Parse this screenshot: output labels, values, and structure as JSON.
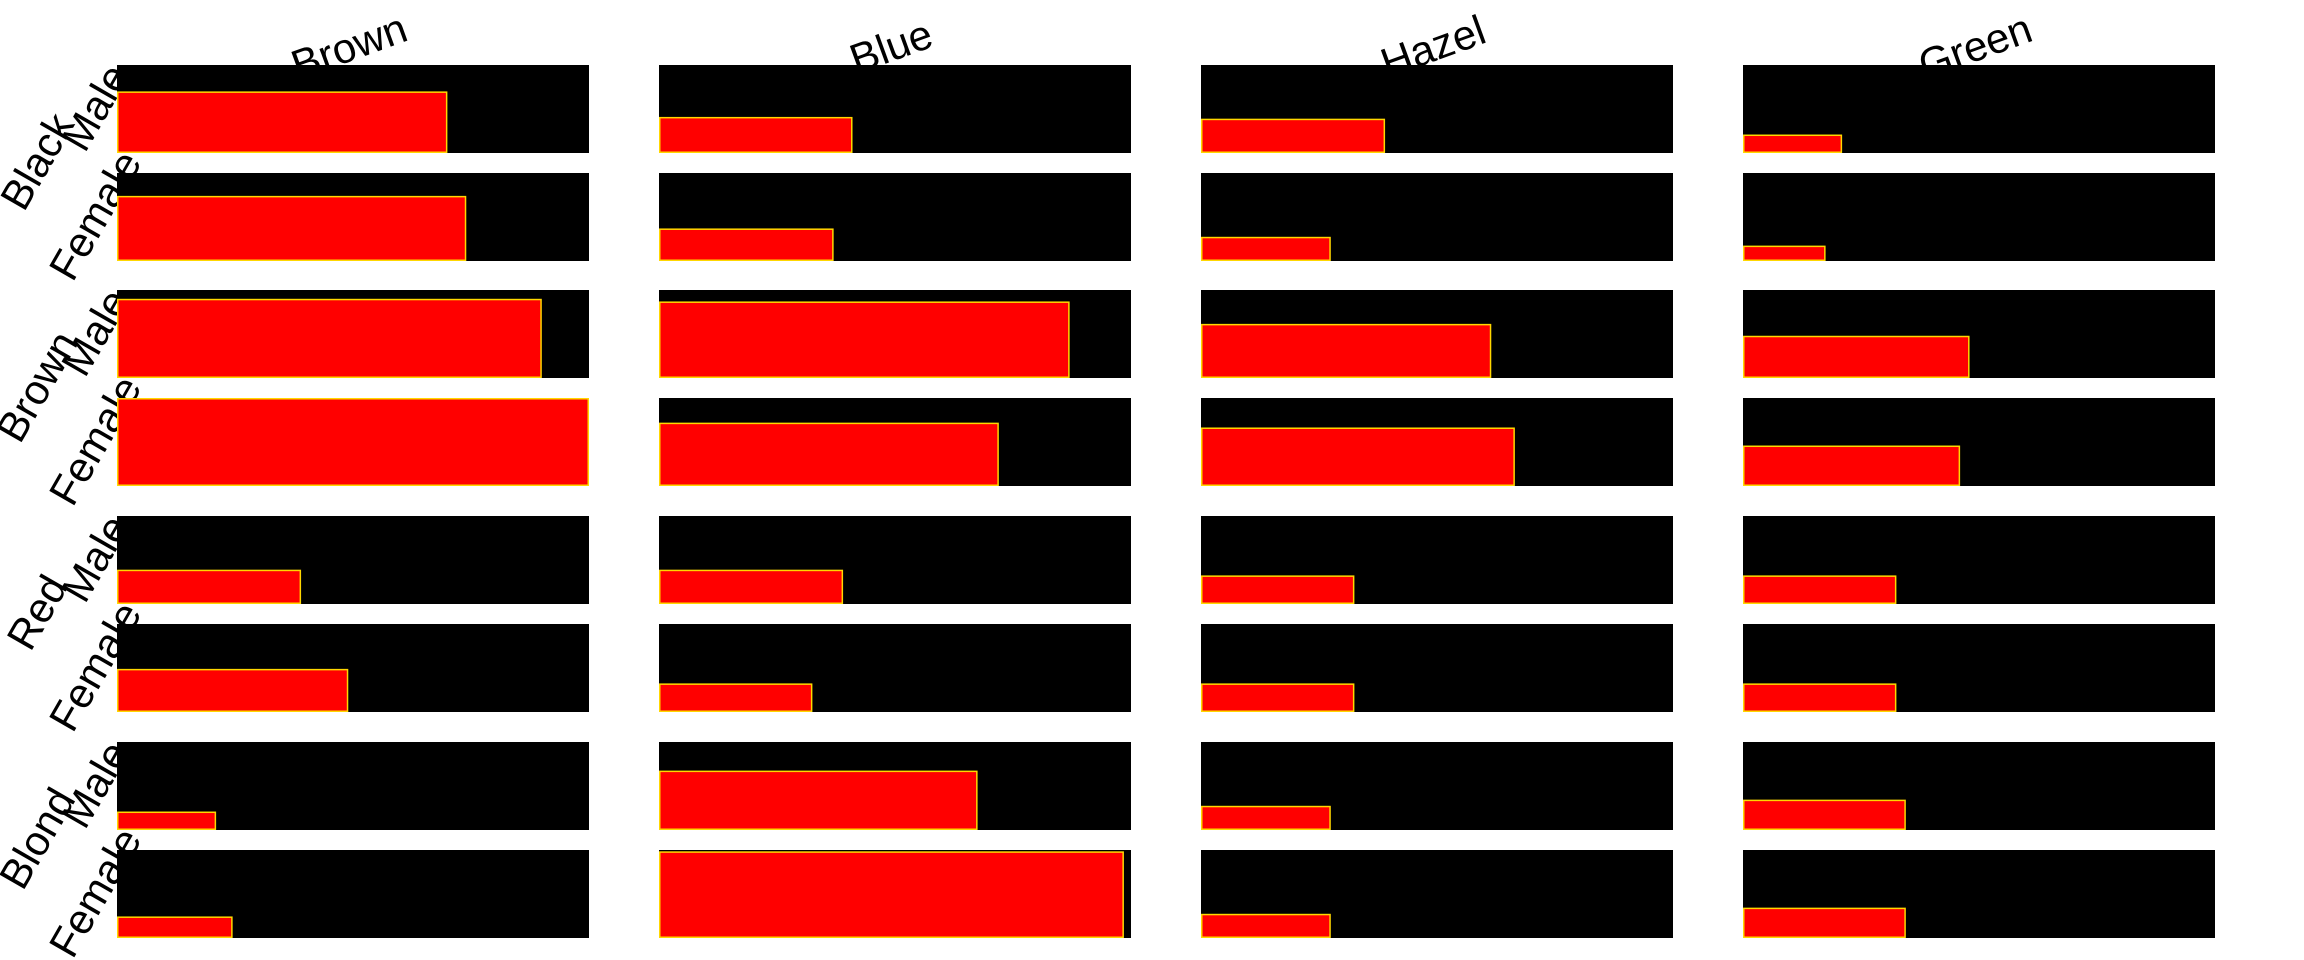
{
  "chart_data": {
    "type": "bar",
    "column_labels": [
      "Brown",
      "Blue",
      "Hazel",
      "Green"
    ],
    "row_groups": [
      "Black",
      "Brown",
      "Red",
      "Blond"
    ],
    "sub_rows": [
      "Male",
      "Female"
    ],
    "cells": [
      {
        "hair": "Black",
        "sex": "Male",
        "eye": "Brown",
        "x": 0.7,
        "y": 0.7
      },
      {
        "hair": "Black",
        "sex": "Male",
        "eye": "Blue",
        "x": 0.41,
        "y": 0.41
      },
      {
        "hair": "Black",
        "sex": "Male",
        "eye": "Hazel",
        "x": 0.39,
        "y": 0.39
      },
      {
        "hair": "Black",
        "sex": "Male",
        "eye": "Green",
        "x": 0.21,
        "y": 0.21
      },
      {
        "hair": "Black",
        "sex": "Female",
        "eye": "Brown",
        "x": 0.74,
        "y": 0.74
      },
      {
        "hair": "Black",
        "sex": "Female",
        "eye": "Blue",
        "x": 0.37,
        "y": 0.37
      },
      {
        "hair": "Black",
        "sex": "Female",
        "eye": "Hazel",
        "x": 0.275,
        "y": 0.275
      },
      {
        "hair": "Black",
        "sex": "Female",
        "eye": "Green",
        "x": 0.175,
        "y": 0.175
      },
      {
        "hair": "Brown",
        "sex": "Male",
        "eye": "Brown",
        "x": 0.9,
        "y": 0.9
      },
      {
        "hair": "Brown",
        "sex": "Male",
        "eye": "Blue",
        "x": 0.87,
        "y": 0.87
      },
      {
        "hair": "Brown",
        "sex": "Male",
        "eye": "Hazel",
        "x": 0.615,
        "y": 0.615
      },
      {
        "hair": "Brown",
        "sex": "Male",
        "eye": "Green",
        "x": 0.48,
        "y": 0.48
      },
      {
        "hair": "Brown",
        "sex": "Female",
        "eye": "Brown",
        "x": 1.0,
        "y": 1.0
      },
      {
        "hair": "Brown",
        "sex": "Female",
        "eye": "Blue",
        "x": 0.72,
        "y": 0.72
      },
      {
        "hair": "Brown",
        "sex": "Female",
        "eye": "Hazel",
        "x": 0.665,
        "y": 0.665
      },
      {
        "hair": "Brown",
        "sex": "Female",
        "eye": "Green",
        "x": 0.46,
        "y": 0.46
      },
      {
        "hair": "Red",
        "sex": "Male",
        "eye": "Brown",
        "x": 0.39,
        "y": 0.39
      },
      {
        "hair": "Red",
        "sex": "Male",
        "eye": "Blue",
        "x": 0.39,
        "y": 0.39
      },
      {
        "hair": "Red",
        "sex": "Male",
        "eye": "Hazel",
        "x": 0.325,
        "y": 0.325
      },
      {
        "hair": "Red",
        "sex": "Male",
        "eye": "Green",
        "x": 0.325,
        "y": 0.325
      },
      {
        "hair": "Red",
        "sex": "Female",
        "eye": "Brown",
        "x": 0.49,
        "y": 0.49
      },
      {
        "hair": "Red",
        "sex": "Female",
        "eye": "Blue",
        "x": 0.325,
        "y": 0.325
      },
      {
        "hair": "Red",
        "sex": "Female",
        "eye": "Hazel",
        "x": 0.325,
        "y": 0.325
      },
      {
        "hair": "Red",
        "sex": "Female",
        "eye": "Green",
        "x": 0.325,
        "y": 0.325
      },
      {
        "hair": "Blond",
        "sex": "Male",
        "eye": "Brown",
        "x": 0.21,
        "y": 0.21
      },
      {
        "hair": "Blond",
        "sex": "Male",
        "eye": "Blue",
        "x": 0.675,
        "y": 0.675
      },
      {
        "hair": "Blond",
        "sex": "Male",
        "eye": "Hazel",
        "x": 0.275,
        "y": 0.275
      },
      {
        "hair": "Blond",
        "sex": "Male",
        "eye": "Green",
        "x": 0.345,
        "y": 0.345
      },
      {
        "hair": "Blond",
        "sex": "Female",
        "eye": "Brown",
        "x": 0.245,
        "y": 0.245
      },
      {
        "hair": "Blond",
        "sex": "Female",
        "eye": "Blue",
        "x": 0.985,
        "y": 0.985
      },
      {
        "hair": "Blond",
        "sex": "Female",
        "eye": "Hazel",
        "x": 0.275,
        "y": 0.275
      },
      {
        "hair": "Blond",
        "sex": "Female",
        "eye": "Green",
        "x": 0.345,
        "y": 0.345
      }
    ],
    "colors": {
      "panel_background": "#000000",
      "bar_fill": "#ff0000",
      "bar_edge": "#ffd700"
    },
    "grid": false,
    "legend": "none"
  }
}
